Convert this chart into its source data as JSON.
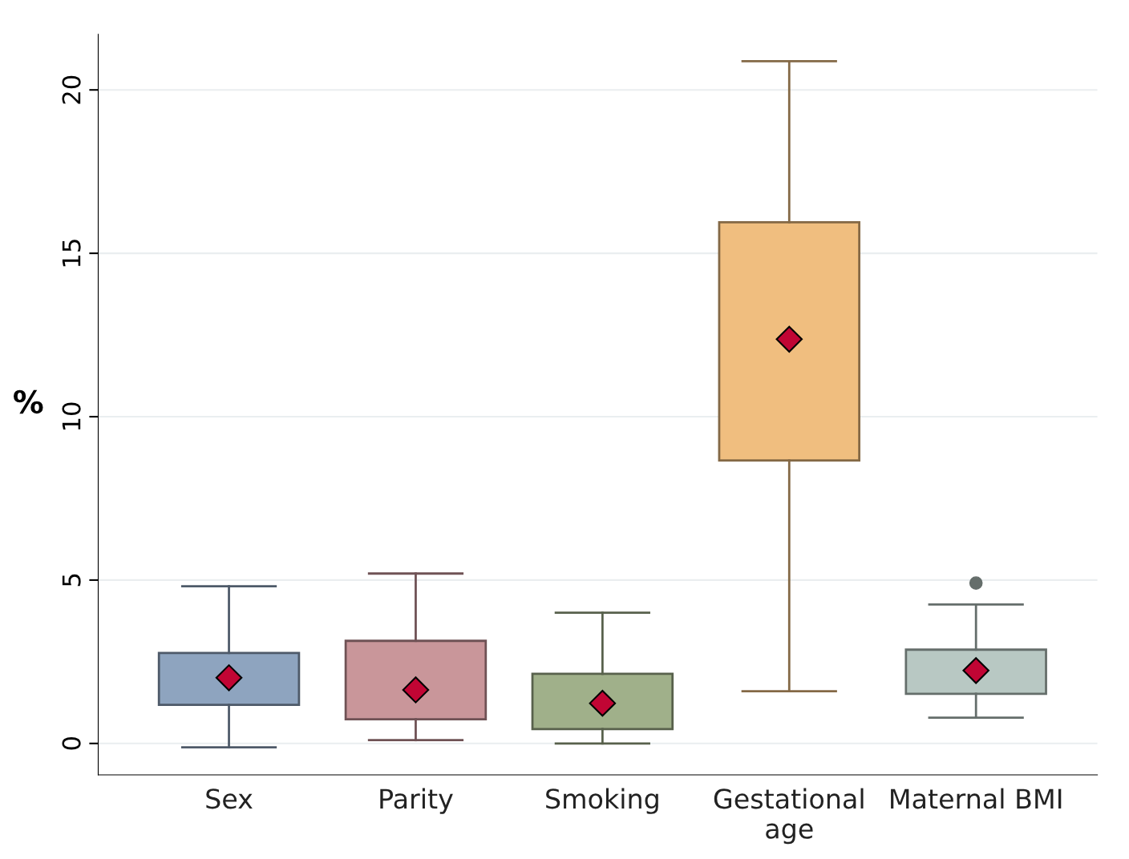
{
  "chart_data": {
    "type": "box",
    "ylabel": "%",
    "categories": [
      "Sex",
      "Parity",
      "Smoking",
      "Gestational age",
      "Maternal BMI"
    ],
    "boxes": [
      {
        "low": -0.12,
        "q1": 1.18,
        "q3": 2.77,
        "high": 4.81,
        "mean": 2.01
      },
      {
        "low": 0.1,
        "q1": 0.74,
        "q3": 3.14,
        "high": 5.2,
        "mean": 1.64
      },
      {
        "low": 0.0,
        "q1": 0.44,
        "q3": 2.13,
        "high": 4.0,
        "mean": 1.23
      },
      {
        "low": 1.6,
        "q1": 8.66,
        "q3": 15.95,
        "high": 20.88,
        "mean": 12.37
      },
      {
        "low": 0.79,
        "q1": 1.52,
        "q3": 2.87,
        "high": 4.25,
        "mean": 2.23,
        "outliers": [
          4.91
        ]
      }
    ],
    "colors": [
      "#8ea4bf",
      "#c9969a",
      "#a0b08a",
      "#f0be7f",
      "#b8c8c3"
    ],
    "ylim": [
      -0.96,
      21.7
    ],
    "yticks": [
      0,
      5,
      10,
      15,
      20
    ],
    "grid": "y",
    "marker": "diamond"
  }
}
